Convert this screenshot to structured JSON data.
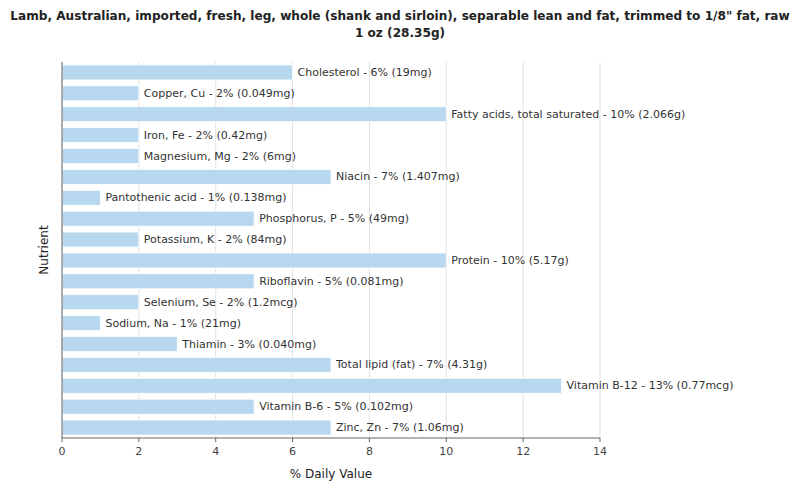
{
  "chart_data": {
    "type": "bar",
    "orientation": "horizontal",
    "title": "Lamb, Australian, imported, fresh, leg, whole (shank and sirloin), separable lean and fat, trimmed to 1/8\" fat, raw\n1 oz (28.35g)",
    "x_label": "% Daily Value",
    "y_label": "Nutrient",
    "categories": [
      "Cholesterol - 6% (19mg)",
      "Copper, Cu - 2% (0.049mg)",
      "Fatty acids, total saturated - 10% (2.066g)",
      "Iron, Fe - 2% (0.42mg)",
      "Magnesium, Mg - 2% (6mg)",
      "Niacin - 7% (1.407mg)",
      "Pantothenic acid - 1% (0.138mg)",
      "Phosphorus, P - 5% (49mg)",
      "Potassium, K - 2% (84mg)",
      "Protein - 10% (5.17g)",
      "Riboflavin - 5% (0.081mg)",
      "Selenium, Se - 2% (1.2mcg)",
      "Sodium, Na - 1% (21mg)",
      "Thiamin - 3% (0.040mg)",
      "Total lipid (fat) - 7% (4.31g)",
      "Vitamin B-12 - 13% (0.77mcg)",
      "Vitamin B-6 - 5% (0.102mg)",
      "Zinc, Zn - 7% (1.06mg)"
    ],
    "values": [
      6,
      2,
      10,
      2,
      2,
      7,
      1,
      5,
      2,
      10,
      5,
      2,
      1,
      3,
      7,
      13,
      5,
      7
    ],
    "color": "#b8d8f0",
    "xlim": [
      0,
      14
    ],
    "xticks": [
      0,
      2,
      4,
      6,
      8,
      10,
      12,
      14
    ],
    "grid": true,
    "tick_labels": "x"
  }
}
